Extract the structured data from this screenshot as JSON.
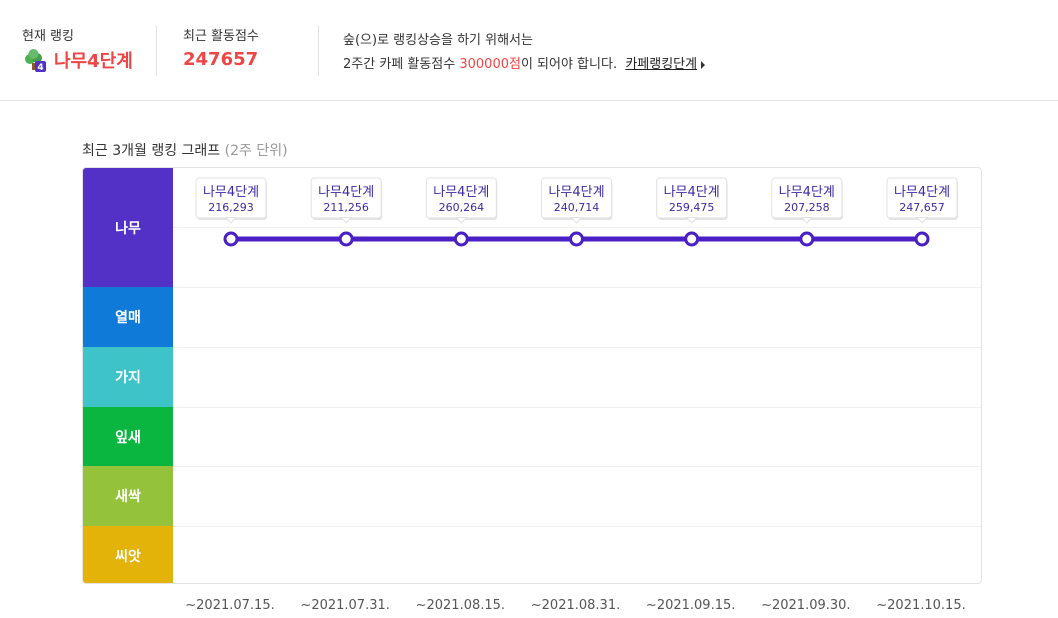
{
  "header": {
    "current_rank_label": "현재 랭킹",
    "current_rank_value": "나무4단계",
    "score_label": "최근 활동점수",
    "score_value": "247657",
    "info_line1": "숲(으)로 랭킹상승을 하기 위해서는",
    "info_line2_pre": "2주간 카페 활동점수 ",
    "info_line2_highlight": "300000점",
    "info_line2_post": "이 되어야 합니다.",
    "link_label": "카페랭킹단계",
    "tree_icon": "tree-level-4-icon",
    "tree_badge": "4"
  },
  "chart_title": "최근 3개월 랭킹 그래프",
  "chart_unit": "(2주 단위)",
  "colors": {
    "accent_red": "#f04545",
    "line": "#4a1fc4",
    "tooltip_text": "#3c2aa8"
  },
  "chart_data": {
    "type": "line",
    "title": "최근 3개월 랭킹 그래프",
    "subtitle": "(2주 단위)",
    "y_levels": [
      {
        "label": "나무",
        "color": "#5330c6"
      },
      {
        "label": "열매",
        "color": "#0f7ad8"
      },
      {
        "label": "가지",
        "color": "#3ec3c9"
      },
      {
        "label": "잎새",
        "color": "#0bb640"
      },
      {
        "label": "새싹",
        "color": "#94c23a"
      },
      {
        "label": "씨앗",
        "color": "#e3b30a"
      }
    ],
    "x": [
      "~2021.07.15.",
      "~2021.07.31.",
      "~2021.08.15.",
      "~2021.08.31.",
      "~2021.09.15.",
      "~2021.09.30.",
      "~2021.10.15."
    ],
    "series": [
      {
        "level": [
          "나무",
          "나무",
          "나무",
          "나무",
          "나무",
          "나무",
          "나무"
        ],
        "rank_labels": [
          "나무4단계",
          "나무4단계",
          "나무4단계",
          "나무4단계",
          "나무4단계",
          "나무4단계",
          "나무4단계"
        ],
        "values": [
          "216,293",
          "211,256",
          "260,264",
          "240,714",
          "259,475",
          "207,258",
          "247,657"
        ]
      }
    ]
  }
}
